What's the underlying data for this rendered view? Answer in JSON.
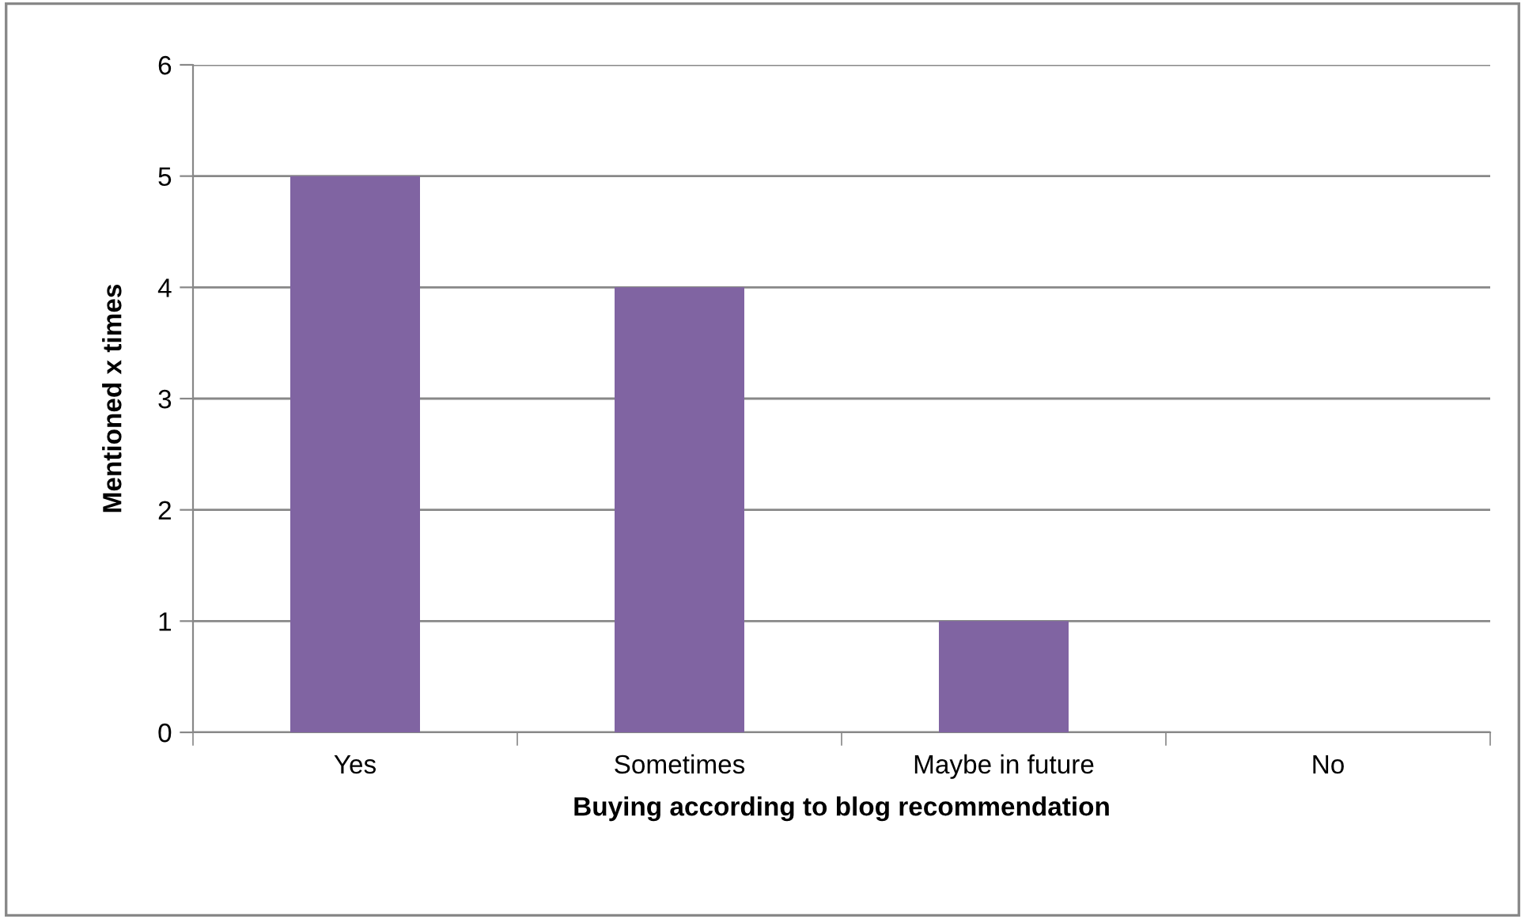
{
  "chart_data": {
    "type": "bar",
    "xlabel": "Buying according to blog recommendation",
    "ylabel": "Mentioned x times",
    "categories": [
      "Yes",
      "Sometimes",
      "Maybe in future",
      "No"
    ],
    "values": [
      5,
      4,
      1,
      0
    ],
    "color": "#8064a2",
    "ylim": [
      0,
      6
    ],
    "yticks": [
      0,
      1,
      2,
      3,
      4,
      5,
      6
    ],
    "grid": "y",
    "legend": false
  }
}
